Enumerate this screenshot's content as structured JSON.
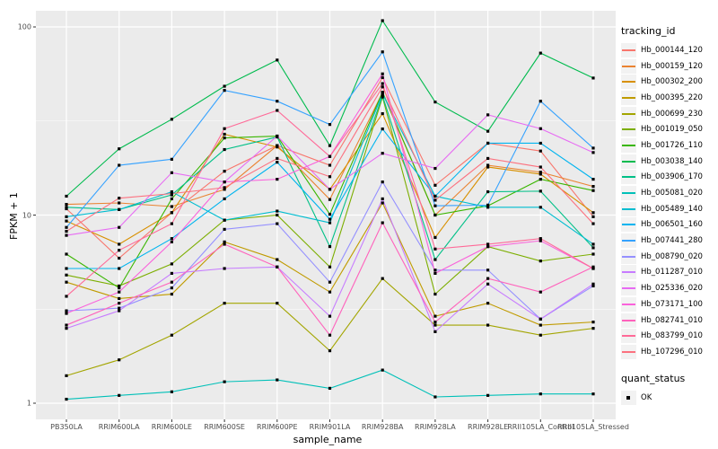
{
  "chart_data": {
    "type": "line",
    "title": "",
    "xlabel": "sample_name",
    "ylabel": "FPKM + 1",
    "y_scale": "log10",
    "y_ticks": [
      "1",
      "10",
      "100"
    ],
    "y_tick_values": [
      1,
      10,
      100
    ],
    "y_minor_values": [
      3.1623,
      31.623
    ],
    "ylim": [
      0.82,
      121
    ],
    "grid": "on",
    "panel_bg": "#EBEBEB",
    "grid_color": "#FFFFFF",
    "point_shape": "square",
    "point_color": "#000000",
    "legend_position": "right",
    "categories": [
      "PB350LA",
      "RRIM600LA",
      "RRIM600LE",
      "RRIM600SE",
      "RRIM600PE",
      "RRIM901LA",
      "RRIM928BA",
      "RRIM928LA",
      "RRIM928LE",
      "RRII105LA_Control",
      "RRII105LA_Stressed"
    ],
    "series": [
      {
        "name": "Hb_000144_120",
        "color": "#F8766D",
        "values": [
          10.8,
          5.9,
          10.3,
          17.1,
          23.4,
          18.4,
          53.8,
          14.4,
          24.1,
          21.9,
          9.8
        ]
      },
      {
        "name": "Hb_000159_120",
        "color": "#EA8331",
        "values": [
          11.4,
          11.6,
          11.1,
          13.7,
          23.4,
          12.1,
          44.8,
          10.0,
          18.4,
          16.9,
          14.2
        ]
      },
      {
        "name": "Hb_000302_200",
        "color": "#D89000",
        "values": [
          9.3,
          7.0,
          10.3,
          26.9,
          23.0,
          13.7,
          34.6,
          7.6,
          18.0,
          16.5,
          10.3
        ]
      },
      {
        "name": "Hb_000395_220",
        "color": "#C09B00",
        "values": [
          4.4,
          3.6,
          3.8,
          7.2,
          5.8,
          3.9,
          11.6,
          2.9,
          3.4,
          2.6,
          2.7
        ]
      },
      {
        "name": "Hb_000699_230",
        "color": "#A3A500",
        "values": [
          1.4,
          1.7,
          2.3,
          3.4,
          3.4,
          1.9,
          4.6,
          2.6,
          2.6,
          2.3,
          2.5
        ]
      },
      {
        "name": "Hb_001019_050",
        "color": "#7CAE00",
        "values": [
          4.8,
          4.2,
          5.5,
          9.4,
          10.0,
          5.3,
          42.4,
          3.8,
          6.8,
          5.7,
          6.2
        ]
      },
      {
        "name": "Hb_001726_110",
        "color": "#39B600",
        "values": [
          6.2,
          4.1,
          12.2,
          25.7,
          26.3,
          10.1,
          45.0,
          10.0,
          11.2,
          15.5,
          13.5
        ]
      },
      {
        "name": "Hb_003038_140",
        "color": "#00BB4E",
        "values": [
          12.6,
          22.5,
          32.3,
          48.4,
          66.7,
          23.4,
          108.0,
          39.9,
          27.9,
          72.6,
          53.5
        ]
      },
      {
        "name": "Hb_003906_170",
        "color": "#00C087",
        "values": [
          11.0,
          10.7,
          12.8,
          22.3,
          26.0,
          6.8,
          43.0,
          5.8,
          13.3,
          13.4,
          6.7
        ]
      },
      {
        "name": "Hb_005081_020",
        "color": "#00C0B8",
        "values": [
          1.05,
          1.1,
          1.15,
          1.3,
          1.33,
          1.2,
          1.5,
          1.08,
          1.1,
          1.12,
          1.12
        ]
      },
      {
        "name": "Hb_005489_140",
        "color": "#00BDD0",
        "values": [
          9.8,
          10.7,
          13.3,
          9.4,
          10.5,
          9.1,
          44.0,
          12.6,
          11.0,
          11.0,
          7.0
        ]
      },
      {
        "name": "Hb_006501_160",
        "color": "#00B4EF",
        "values": [
          5.2,
          5.2,
          7.5,
          12.2,
          19.1,
          9.5,
          28.7,
          12.6,
          24.1,
          24.1,
          15.5
        ]
      },
      {
        "name": "Hb_007441_280",
        "color": "#35A2FF",
        "values": [
          8.6,
          18.4,
          19.8,
          46.0,
          40.3,
          30.3,
          73.7,
          11.2,
          11.3,
          40.3,
          22.7
        ]
      },
      {
        "name": "Hb_008790_020",
        "color": "#9590FF",
        "values": [
          3.1,
          3.2,
          4.1,
          8.4,
          9.0,
          4.4,
          15.0,
          5.1,
          5.1,
          2.8,
          4.2
        ]
      },
      {
        "name": "Hb_011287_010",
        "color": "#C77CFF",
        "values": [
          2.5,
          3.1,
          4.9,
          5.2,
          5.3,
          2.9,
          12.2,
          2.4,
          4.3,
          2.8,
          4.3
        ]
      },
      {
        "name": "Hb_025336_020",
        "color": "#E76BF3",
        "values": [
          7.8,
          8.6,
          16.8,
          15.0,
          26.3,
          13.7,
          21.3,
          17.7,
          34.1,
          28.8,
          21.5
        ]
      },
      {
        "name": "Hb_073171_100",
        "color": "#FA62DB",
        "values": [
          3.0,
          3.9,
          7.2,
          15.0,
          15.5,
          20.5,
          56.3,
          4.9,
          6.8,
          7.3,
          5.2
        ]
      },
      {
        "name": "Hb_082741_010",
        "color": "#FF62BC",
        "values": [
          2.6,
          3.4,
          4.4,
          7.0,
          5.3,
          2.3,
          9.1,
          2.7,
          4.6,
          3.9,
          5.3
        ]
      },
      {
        "name": "Hb_083799_010",
        "color": "#FF6A98",
        "values": [
          3.7,
          6.5,
          9.0,
          28.8,
          36.0,
          20.5,
          50.0,
          6.6,
          7.0,
          7.5,
          5.2
        ]
      },
      {
        "name": "Hb_107296_010",
        "color": "#FC717F",
        "values": [
          8.2,
          12.3,
          13.0,
          14.0,
          20.0,
          16.0,
          48.0,
          12.0,
          20.0,
          18.0,
          9.0
        ]
      }
    ],
    "legend": {
      "tracking_title": "tracking_id",
      "quant_title": "quant_status",
      "quant_items": [
        {
          "label": "OK",
          "shape": "square",
          "color": "#000000"
        }
      ]
    }
  }
}
